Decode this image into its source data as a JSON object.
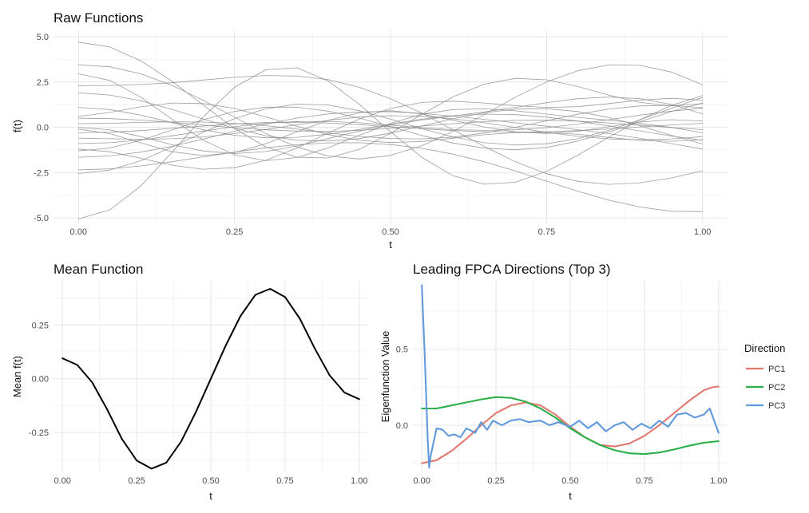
{
  "chart_data": [
    {
      "id": "raw",
      "type": "line",
      "title": "Raw Functions",
      "xlabel": "t",
      "ylabel": "f(t)",
      "xlim": [
        -0.04,
        1.04
      ],
      "ylim": [
        -5.3,
        5.35
      ],
      "xticks": [
        0.0,
        0.25,
        0.5,
        0.75,
        1.0
      ],
      "xtick_labels": [
        "0.00",
        "0.25",
        "0.50",
        "0.75",
        "1.00"
      ],
      "yticks": [
        -5.0,
        -2.5,
        0.0,
        2.5,
        5.0
      ],
      "ytick_labels": [
        "-5.0",
        "-2.5",
        "0.0",
        "2.5",
        "5.0"
      ],
      "grid": true,
      "line_color": "#8c8c8c",
      "curve_model": "f(t) = a*cos(2*pi*t) + b*sin(2*pi*t) + c*sin(4*pi*t)",
      "x": [
        0.0,
        0.05,
        0.1,
        0.15,
        0.2,
        0.25,
        0.3,
        0.35,
        0.4,
        0.45,
        0.5,
        0.55,
        0.6,
        0.65,
        0.7,
        0.75,
        0.8,
        0.85,
        0.9,
        0.95,
        1.0
      ],
      "series": [
        {
          "values": [
            4.7,
            4.43,
            3.67,
            2.54,
            1.22,
            -0.06,
            -1.08,
            -1.65,
            -1.69,
            -1.21,
            -0.33,
            0.71,
            1.68,
            2.38,
            2.7,
            2.62,
            2.25,
            1.77,
            1.37,
            1.19,
            1.3
          ]
        },
        {
          "values": [
            -5.05,
            -4.56,
            -3.23,
            -1.37,
            0.58,
            2.21,
            3.17,
            3.28,
            2.56,
            1.27,
            -0.25,
            -1.65,
            -2.67,
            -3.14,
            -3.03,
            -2.43,
            -1.54,
            -0.54,
            0.42,
            1.21,
            1.75
          ]
        },
        {
          "values": [
            3.45,
            3.34,
            2.95,
            2.31,
            1.48,
            0.56,
            -0.34,
            -1.09,
            -1.58,
            -1.75,
            -1.55,
            -1.02,
            -0.23,
            0.7,
            1.66,
            2.5,
            3.12,
            3.44,
            3.42,
            3.05,
            2.35
          ]
        },
        {
          "values": [
            -2.55,
            -2.36,
            -1.84,
            -1.09,
            -0.27,
            0.48,
            1.02,
            1.28,
            1.23,
            0.92,
            0.45,
            -0.07,
            -0.53,
            -0.85,
            -0.98,
            -0.91,
            -0.63,
            -0.17,
            0.42,
            1.05,
            1.65
          ]
        },
        {
          "values": [
            -2.35,
            -2.29,
            -2.13,
            -1.9,
            -1.63,
            -1.37,
            -1.13,
            -0.96,
            -0.86,
            -0.85,
            -0.95,
            -1.16,
            -1.48,
            -1.9,
            -2.41,
            -2.97,
            -3.52,
            -4.02,
            -4.4,
            -4.63,
            -4.65
          ]
        },
        {
          "values": [
            2.95,
            2.59,
            1.66,
            0.44,
            -0.71,
            -1.52,
            -1.84,
            -1.67,
            -1.13,
            -0.44,
            0.22,
            0.72,
            0.98,
            1.02,
            0.91,
            0.73,
            0.55,
            0.39,
            0.22,
            0.0,
            -0.31
          ]
        },
        {
          "values": [
            1.9,
            1.78,
            1.46,
            0.99,
            0.46,
            -0.06,
            -0.47,
            -0.71,
            -0.76,
            -0.62,
            -0.32,
            0.07,
            0.47,
            0.8,
            1.0,
            1.03,
            0.87,
            0.54,
            0.08,
            -0.44,
            -0.92
          ]
        },
        {
          "values": [
            -1.65,
            -1.58,
            -1.37,
            -1.05,
            -0.65,
            -0.22,
            0.18,
            0.51,
            0.74,
            0.85,
            0.86,
            0.77,
            0.62,
            0.44,
            0.25,
            0.06,
            -0.13,
            -0.35,
            -0.61,
            -0.9,
            -1.2
          ]
        },
        {
          "values": [
            1.1,
            0.98,
            0.67,
            0.26,
            -0.14,
            -0.44,
            -0.58,
            -0.55,
            -0.38,
            -0.12,
            0.18,
            0.45,
            0.64,
            0.73,
            0.7,
            0.56,
            0.34,
            0.08,
            -0.2,
            -0.48,
            -0.72
          ]
        },
        {
          "values": [
            -0.9,
            -0.85,
            -0.7,
            -0.47,
            -0.21,
            0.03,
            0.22,
            0.32,
            0.33,
            0.25,
            0.12,
            -0.02,
            -0.13,
            -0.17,
            -0.14,
            -0.02,
            0.18,
            0.42,
            0.67,
            0.89,
            1.05
          ]
        },
        {
          "values": [
            0.5,
            0.48,
            0.4,
            0.27,
            0.12,
            -0.02,
            -0.14,
            -0.21,
            -0.22,
            -0.17,
            -0.06,
            0.07,
            0.2,
            0.31,
            0.38,
            0.39,
            0.34,
            0.24,
            0.12,
            -0.01,
            -0.13
          ]
        },
        {
          "values": [
            -0.3,
            -0.27,
            -0.18,
            -0.06,
            0.07,
            0.19,
            0.26,
            0.28,
            0.24,
            0.15,
            0.03,
            -0.08,
            -0.18,
            -0.24,
            -0.26,
            -0.24,
            -0.18,
            -0.09,
            0.02,
            0.13,
            0.22
          ]
        },
        {
          "values": [
            0.2,
            0.22,
            0.27,
            0.3,
            0.29,
            0.22,
            0.09,
            -0.1,
            -0.31,
            -0.5,
            -0.62,
            -0.64,
            -0.54,
            -0.32,
            0.0,
            0.36,
            0.72,
            1.01,
            1.18,
            1.21,
            1.08
          ]
        },
        {
          "values": [
            -0.6,
            -0.63,
            -0.66,
            -0.63,
            -0.53,
            -0.35,
            -0.12,
            0.14,
            0.38,
            0.56,
            0.64,
            0.61,
            0.47,
            0.25,
            -0.01,
            -0.28,
            -0.5,
            -0.64,
            -0.69,
            -0.64,
            -0.51
          ]
        },
        {
          "values": [
            -1.3,
            -1.14,
            -0.72,
            -0.15,
            0.42,
            0.87,
            1.11,
            1.11,
            0.89,
            0.51,
            0.04,
            -0.45,
            -0.87,
            -1.15,
            -1.24,
            -1.11,
            -0.76,
            -0.26,
            0.31,
            0.87,
            1.34
          ]
        },
        {
          "values": [
            0.6,
            0.82,
            1.13,
            1.34,
            1.31,
            1.04,
            0.58,
            0.06,
            -0.4,
            -0.72,
            -0.84,
            -0.78,
            -0.6,
            -0.41,
            -0.29,
            -0.28,
            -0.39,
            -0.56,
            -0.72,
            -0.77,
            -0.68
          ]
        },
        {
          "values": [
            -0.1,
            -0.35,
            -0.86,
            -1.35,
            -1.56,
            -1.39,
            -0.91,
            -0.25,
            0.38,
            0.8,
            0.92,
            0.74,
            0.39,
            0.02,
            -0.25,
            -0.34,
            -0.22,
            0.03,
            0.29,
            0.42,
            0.35
          ]
        },
        {
          "values": [
            2.3,
            2.31,
            2.36,
            2.46,
            2.61,
            2.76,
            2.86,
            2.83,
            2.63,
            2.21,
            1.58,
            0.78,
            -0.13,
            -1.05,
            -1.9,
            -2.56,
            -2.98,
            -3.15,
            -3.06,
            -2.79,
            -2.4
          ]
        },
        {
          "values": [
            -1.2,
            -1.35,
            -1.71,
            -2.09,
            -2.31,
            -2.23,
            -1.82,
            -1.14,
            -0.32,
            0.45,
            1.04,
            1.37,
            1.44,
            1.34,
            1.19,
            1.1,
            1.14,
            1.31,
            1.5,
            1.6,
            1.5
          ]
        },
        {
          "values": [
            0.0,
            -0.14,
            -0.51,
            -0.96,
            -1.31,
            -1.45,
            -1.34,
            -1.03,
            -0.62,
            -0.21,
            0.13,
            0.4,
            0.62,
            0.85,
            1.1,
            1.36,
            1.58,
            1.67,
            1.58,
            1.26,
            0.74
          ]
        }
      ]
    },
    {
      "id": "mean",
      "type": "line",
      "title": "Mean Function",
      "xlabel": "t",
      "ylabel": "Mean f(t)",
      "xlim": [
        -0.03,
        1.03
      ],
      "ylim": [
        -0.435,
        0.455
      ],
      "xticks": [
        0.0,
        0.25,
        0.5,
        0.75,
        1.0
      ],
      "xtick_labels": [
        "0.00",
        "0.25",
        "0.50",
        "0.75",
        "1.00"
      ],
      "yticks": [
        -0.25,
        0.0,
        0.25
      ],
      "ytick_labels": [
        "-0.25",
        "0.00",
        "0.25"
      ],
      "grid": true,
      "line_color": "#000000",
      "x": [
        0.0,
        0.05,
        0.1,
        0.15,
        0.2,
        0.25,
        0.3,
        0.35,
        0.4,
        0.45,
        0.5,
        0.55,
        0.6,
        0.65,
        0.7,
        0.75,
        0.8,
        0.85,
        0.9,
        0.95,
        1.0
      ],
      "series": [
        {
          "values": [
            0.095,
            0.064,
            -0.016,
            -0.141,
            -0.279,
            -0.38,
            -0.418,
            -0.39,
            -0.292,
            -0.154,
            0.0,
            0.154,
            0.292,
            0.39,
            0.418,
            0.38,
            0.279,
            0.141,
            0.016,
            -0.064,
            -0.095
          ]
        }
      ]
    },
    {
      "id": "fpca",
      "type": "line",
      "title": "Leading FPCA Directions (Top 3)",
      "xlabel": "t",
      "ylabel": "Eigenfunction Value",
      "xlim": [
        -0.03,
        1.03
      ],
      "ylim": [
        -0.31,
        0.95
      ],
      "xticks": [
        0.0,
        0.25,
        0.5,
        0.75,
        1.0
      ],
      "xtick_labels": [
        "0.00",
        "0.25",
        "0.50",
        "0.75",
        "1.00"
      ],
      "yticks": [
        0.0,
        0.5
      ],
      "ytick_labels": [
        "0.0",
        "0.5"
      ],
      "grid": true,
      "legend": {
        "title": "Direction",
        "position": "right"
      },
      "series": [
        {
          "name": "PC1",
          "color": "#e07970",
          "x": [
            0.0,
            0.05,
            0.1,
            0.15,
            0.2,
            0.25,
            0.3,
            0.35,
            0.4,
            0.45,
            0.5,
            0.55,
            0.6,
            0.65,
            0.7,
            0.75,
            0.8,
            0.85,
            0.9,
            0.95,
            0.98,
            1.0
          ],
          "values": [
            -0.25,
            -0.23,
            -0.17,
            -0.09,
            0.0,
            0.08,
            0.13,
            0.15,
            0.13,
            0.07,
            -0.01,
            -0.08,
            -0.13,
            -0.14,
            -0.12,
            -0.07,
            0.0,
            0.08,
            0.16,
            0.23,
            0.25,
            0.255
          ]
        },
        {
          "name": "PC2",
          "color": "#2bb04a",
          "x": [
            0.0,
            0.05,
            0.1,
            0.15,
            0.2,
            0.25,
            0.3,
            0.35,
            0.4,
            0.45,
            0.5,
            0.55,
            0.6,
            0.65,
            0.7,
            0.75,
            0.8,
            0.85,
            0.9,
            0.95,
            1.0
          ],
          "values": [
            0.11,
            0.11,
            0.13,
            0.15,
            0.17,
            0.185,
            0.18,
            0.155,
            0.11,
            0.05,
            -0.02,
            -0.08,
            -0.13,
            -0.165,
            -0.185,
            -0.19,
            -0.18,
            -0.16,
            -0.135,
            -0.115,
            -0.105
          ]
        },
        {
          "name": "PC3",
          "color": "#6199dd",
          "x": [
            0.0,
            0.01,
            0.02,
            0.025,
            0.03,
            0.05,
            0.07,
            0.09,
            0.11,
            0.13,
            0.15,
            0.18,
            0.2,
            0.22,
            0.24,
            0.27,
            0.3,
            0.33,
            0.36,
            0.4,
            0.43,
            0.46,
            0.5,
            0.53,
            0.56,
            0.59,
            0.62,
            0.65,
            0.68,
            0.71,
            0.74,
            0.77,
            0.8,
            0.83,
            0.86,
            0.89,
            0.92,
            0.95,
            0.97,
            1.0
          ],
          "values": [
            0.92,
            0.45,
            -0.1,
            -0.28,
            -0.2,
            -0.02,
            -0.03,
            -0.07,
            -0.06,
            -0.08,
            -0.02,
            -0.05,
            0.02,
            -0.03,
            0.03,
            0.0,
            0.03,
            0.04,
            0.02,
            0.03,
            0.0,
            0.02,
            -0.01,
            0.03,
            -0.02,
            0.02,
            -0.04,
            0.0,
            0.02,
            -0.03,
            0.01,
            -0.02,
            0.03,
            -0.01,
            0.07,
            0.08,
            0.05,
            0.07,
            0.11,
            -0.05
          ]
        }
      ]
    }
  ]
}
